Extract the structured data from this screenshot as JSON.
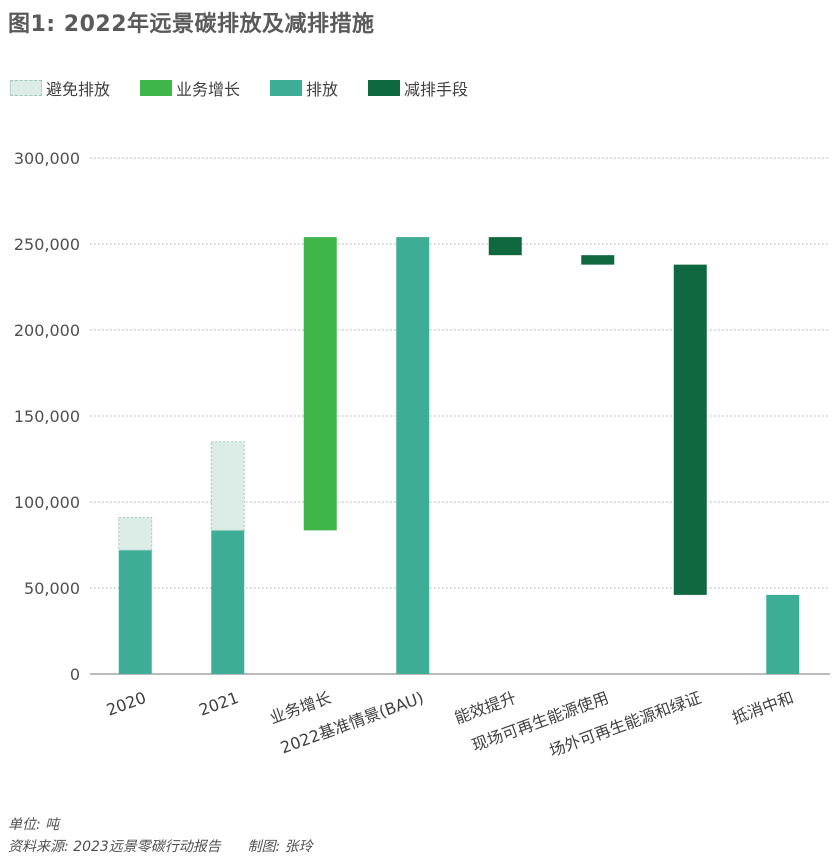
{
  "title": "图1: 2022年远景碳排放及减排措施",
  "legend": [
    {
      "label": "避免排放",
      "color": "#dcece6",
      "dashed": true
    },
    {
      "label": "业务增长",
      "color": "#3fb649",
      "dashed": false
    },
    {
      "label": "排放",
      "color": "#3ead96",
      "dashed": false
    },
    {
      "label": "减排手段",
      "color": "#0f6840",
      "dashed": false
    }
  ],
  "footer": {
    "unit": "单位: 吨",
    "source": "资料来源: 2023远景零碳行动报告",
    "author": "制图: 张玲"
  },
  "chart_data": {
    "type": "bar",
    "title": "图1: 2022年远景碳排放及减排措施",
    "xlabel": "",
    "ylabel": "",
    "ylim": [
      0,
      300000
    ],
    "yticks": [
      0,
      50000,
      100000,
      150000,
      200000,
      250000,
      300000
    ],
    "ytick_labels": [
      "0",
      "50,000",
      "100,000",
      "150,000",
      "200,000",
      "250,000",
      "300,000"
    ],
    "grid": true,
    "legend_position": "top-left",
    "categories": [
      "2020",
      "2021",
      "业务增长",
      "2022基准情景(BAU)",
      "能效提升",
      "现场可再生能源使用",
      "场外可再生能源和绿证",
      "抵消中和"
    ],
    "bars": [
      {
        "category": "2020",
        "series": "排放",
        "base": 0,
        "top": 72000
      },
      {
        "category": "2020",
        "series": "避免排放",
        "base": 72000,
        "top": 91000
      },
      {
        "category": "2021",
        "series": "排放",
        "base": 0,
        "top": 83500
      },
      {
        "category": "2021",
        "series": "避免排放",
        "base": 83500,
        "top": 135000
      },
      {
        "category": "业务增长",
        "series": "业务增长",
        "base": 83500,
        "top": 254000
      },
      {
        "category": "2022基准情景(BAU)",
        "series": "排放",
        "base": 0,
        "top": 254000
      },
      {
        "category": "能效提升",
        "series": "减排手段",
        "base": 243500,
        "top": 254000
      },
      {
        "category": "现场可再生能源使用",
        "series": "减排手段",
        "base": 238000,
        "top": 243500
      },
      {
        "category": "场外可再生能源和绿证",
        "series": "减排手段",
        "base": 46000,
        "top": 238000
      },
      {
        "category": "抵消中和",
        "series": "排放",
        "base": 0,
        "top": 46000
      }
    ]
  }
}
